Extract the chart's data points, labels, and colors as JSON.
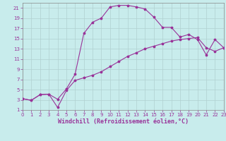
{
  "title": "",
  "xlabel": "Windchill (Refroidissement éolien,°C)",
  "background_color": "#c8ecec",
  "grid_color": "#b0d0d0",
  "line_color": "#993399",
  "xlim": [
    0,
    23
  ],
  "ylim": [
    1,
    22
  ],
  "xticks": [
    0,
    1,
    2,
    3,
    4,
    5,
    6,
    7,
    8,
    9,
    10,
    11,
    12,
    13,
    14,
    15,
    16,
    17,
    18,
    19,
    20,
    21,
    22,
    23
  ],
  "yticks": [
    1,
    3,
    5,
    7,
    9,
    11,
    13,
    15,
    17,
    19,
    21
  ],
  "curve1_x": [
    0,
    1,
    2,
    3,
    4,
    5,
    6,
    7,
    8,
    9,
    10,
    11,
    12,
    13,
    14,
    15,
    16,
    17,
    18,
    19,
    20,
    21,
    22,
    23
  ],
  "curve1_y": [
    3.2,
    2.9,
    4.0,
    4.1,
    3.1,
    5.1,
    8.0,
    16.0,
    18.2,
    19.0,
    21.2,
    21.5,
    21.5,
    21.2,
    20.8,
    19.2,
    17.2,
    17.2,
    15.3,
    15.8,
    14.8,
    11.8,
    14.8,
    13.2
  ],
  "curve2_x": [
    0,
    1,
    2,
    3,
    4,
    5,
    6,
    7,
    8,
    9,
    10,
    11,
    12,
    13,
    14,
    15,
    16,
    17,
    18,
    19,
    20,
    21,
    22,
    23
  ],
  "curve2_y": [
    3.2,
    2.9,
    4.0,
    4.1,
    1.5,
    4.8,
    6.8,
    7.3,
    7.8,
    8.5,
    9.5,
    10.5,
    11.5,
    12.2,
    13.0,
    13.5,
    14.0,
    14.5,
    14.8,
    15.0,
    15.2,
    13.2,
    12.5,
    13.2
  ],
  "tick_fontsize": 5.0,
  "xlabel_fontsize": 6.0,
  "marker_size": 2.5,
  "line_width": 0.8
}
